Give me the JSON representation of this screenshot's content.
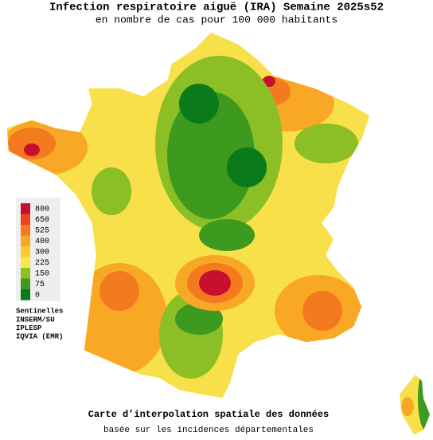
{
  "header": {
    "title": "Infection respiratoire aiguë (IRA) Semaine 2025s52",
    "subtitle": "en nombre de cas pour 100 000 habitants"
  },
  "legend": {
    "items": [
      {
        "value": 800,
        "color": "#c8102e"
      },
      {
        "value": 650,
        "color": "#e8441f"
      },
      {
        "value": 525,
        "color": "#f47a20"
      },
      {
        "value": 400,
        "color": "#f9a825"
      },
      {
        "value": 300,
        "color": "#fccb2a"
      },
      {
        "value": 225,
        "color": "#f8e94a"
      },
      {
        "value": 150,
        "color": "#8bbf25"
      },
      {
        "value": 75,
        "color": "#3d9a1e"
      },
      {
        "value": 0,
        "color": "#0b7a1a"
      }
    ]
  },
  "sources": {
    "label": "Sentinelles",
    "items": [
      "INSERM/SU",
      "IPLESP",
      "IQVIA (EMR)"
    ]
  },
  "footer": {
    "title": "Carte d’interpolation spatiale des données",
    "subtitle": "basée sur les incidences départementales"
  }
}
